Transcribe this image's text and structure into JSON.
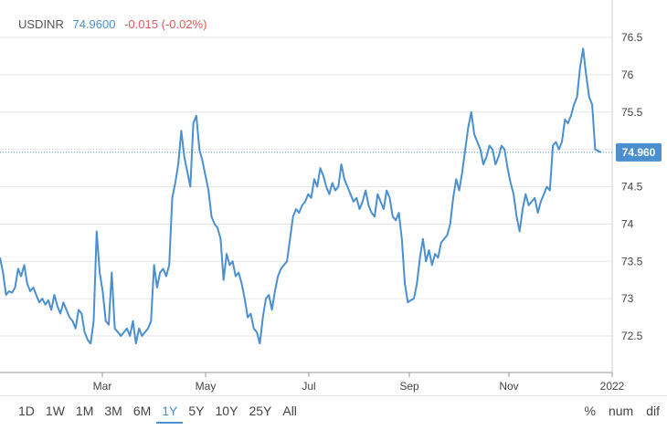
{
  "header": {
    "symbol": "USDINR",
    "last": "74.9600",
    "change": "-0.015 (-0.02%)"
  },
  "colors": {
    "line": "#4a8fcf",
    "change_negative": "#e05a5a",
    "grid": "#e6e6e6",
    "tag": "#4a8fcf"
  },
  "current_price_label": "74.960",
  "range_buttons": [
    "1D",
    "1W",
    "1M",
    "3M",
    "6M",
    "1Y",
    "5Y",
    "10Y",
    "25Y",
    "All"
  ],
  "active_range": "1Y",
  "mode_buttons": [
    "%",
    "num",
    "dif"
  ],
  "chart_data": {
    "type": "line",
    "title": "",
    "xlabel": "",
    "ylabel": "",
    "x_ticks": [
      "Mar",
      "May",
      "Jul",
      "Sep",
      "Nov",
      "2022"
    ],
    "y_ticks": [
      "72.5",
      "73",
      "73.5",
      "74",
      "74.5",
      "75",
      "75.5",
      "76",
      "76.5"
    ],
    "ylim": [
      72.0,
      76.7
    ],
    "grid": "horizontal",
    "reference_line": 74.96,
    "series": [
      {
        "values": [
          73.55,
          73.35,
          73.05,
          73.1,
          73.08,
          73.15,
          73.4,
          73.3,
          73.45,
          73.2,
          73.1,
          73.15,
          73.05,
          72.95,
          73.0,
          72.92,
          72.98,
          72.85,
          73.05,
          72.9,
          72.8,
          72.95,
          72.85,
          72.75,
          72.7,
          72.6,
          72.85,
          72.8,
          72.55,
          72.45,
          72.4,
          72.7,
          73.9,
          73.35,
          73.1,
          72.7,
          72.65,
          73.35,
          72.6,
          72.55,
          72.5,
          72.55,
          72.6,
          72.5,
          72.7,
          72.4,
          72.6,
          72.5,
          72.55,
          72.6,
          72.7,
          73.45,
          73.15,
          73.35,
          73.4,
          73.3,
          73.45,
          74.35,
          74.55,
          74.8,
          75.25,
          74.9,
          74.7,
          74.5,
          75.35,
          75.45,
          75.0,
          74.85,
          74.65,
          74.45,
          74.1,
          74.0,
          73.95,
          73.8,
          73.25,
          73.6,
          73.45,
          73.5,
          73.3,
          73.35,
          73.2,
          73.0,
          72.75,
          72.8,
          72.6,
          72.55,
          72.4,
          72.75,
          73.0,
          73.05,
          72.85,
          73.1,
          73.3,
          73.4,
          73.45,
          73.5,
          73.8,
          74.1,
          74.2,
          74.15,
          74.25,
          74.3,
          74.4,
          74.35,
          74.6,
          74.5,
          74.75,
          74.65,
          74.5,
          74.4,
          74.55,
          74.45,
          74.5,
          74.8,
          74.6,
          74.5,
          74.4,
          74.3,
          74.35,
          74.2,
          74.3,
          74.45,
          74.25,
          74.15,
          74.1,
          74.4,
          74.3,
          74.2,
          74.45,
          74.35,
          74.1,
          74.05,
          74.15,
          73.8,
          73.2,
          72.95,
          72.98,
          73.0,
          73.2,
          73.55,
          73.8,
          73.5,
          73.65,
          73.45,
          73.6,
          73.55,
          73.75,
          73.8,
          73.85,
          74.0,
          74.35,
          74.6,
          74.45,
          74.7,
          75.0,
          75.3,
          75.5,
          75.2,
          75.1,
          75.0,
          74.8,
          74.9,
          75.05,
          75.0,
          74.8,
          74.9,
          75.05,
          75.0,
          74.75,
          74.55,
          74.4,
          74.1,
          73.9,
          74.2,
          74.4,
          74.25,
          74.3,
          74.35,
          74.15,
          74.3,
          74.4,
          74.5,
          74.45,
          75.05,
          75.1,
          75.0,
          75.1,
          75.4,
          75.35,
          75.45,
          75.6,
          75.7,
          76.1,
          76.35,
          76.0,
          75.7,
          75.6,
          75.0,
          74.98,
          74.96
        ]
      }
    ]
  }
}
